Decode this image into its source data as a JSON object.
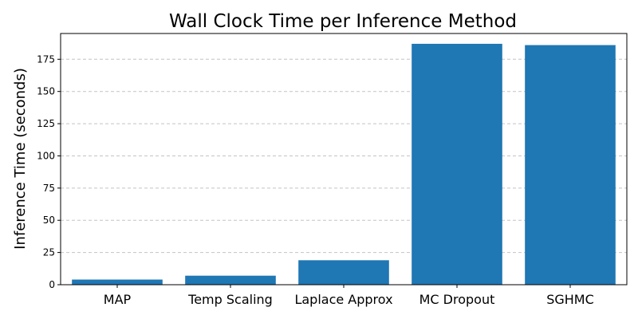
{
  "chart_data": {
    "type": "bar",
    "title": "Wall Clock Time per Inference Method",
    "xlabel": "",
    "ylabel": "Inference Time (seconds)",
    "categories": [
      "MAP",
      "Temp Scaling",
      "Laplace Approx",
      "MC Dropout",
      "SGHMC"
    ],
    "values": [
      4,
      7,
      19,
      187,
      186
    ],
    "ylim": [
      0,
      195
    ],
    "yticks": [
      "0",
      "25",
      "50",
      "75",
      "100",
      "125",
      "150",
      "175"
    ],
    "grid": "y-dashed",
    "bar_color": "#1f77b4",
    "grid_color": "#c4c4c4"
  }
}
